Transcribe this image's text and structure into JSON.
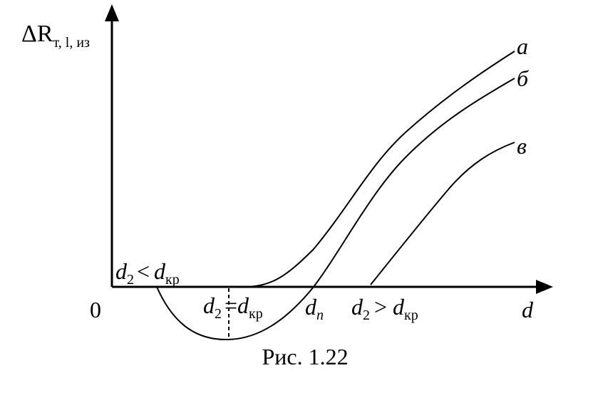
{
  "axis_label": {
    "symbol": "ΔR",
    "subscript": "т, l, из"
  },
  "origin": "0",
  "x_label": "d",
  "curves": {
    "a": "а",
    "b": "б",
    "c": "в"
  },
  "annotations": {
    "less": {
      "var": "d",
      "sub": "2",
      "op": "<",
      "var2": "d",
      "sub2": "кр"
    },
    "equal": {
      "var": "d",
      "sub": "2",
      "op": "=",
      "var2": "d",
      "sub2": "кр"
    },
    "dn": {
      "var": "d",
      "sub": "n"
    },
    "greater": {
      "var": "d",
      "sub": "2",
      "op": ">",
      "var2": "d",
      "sub2": "кр"
    }
  },
  "caption": "Рис. 1.22"
}
